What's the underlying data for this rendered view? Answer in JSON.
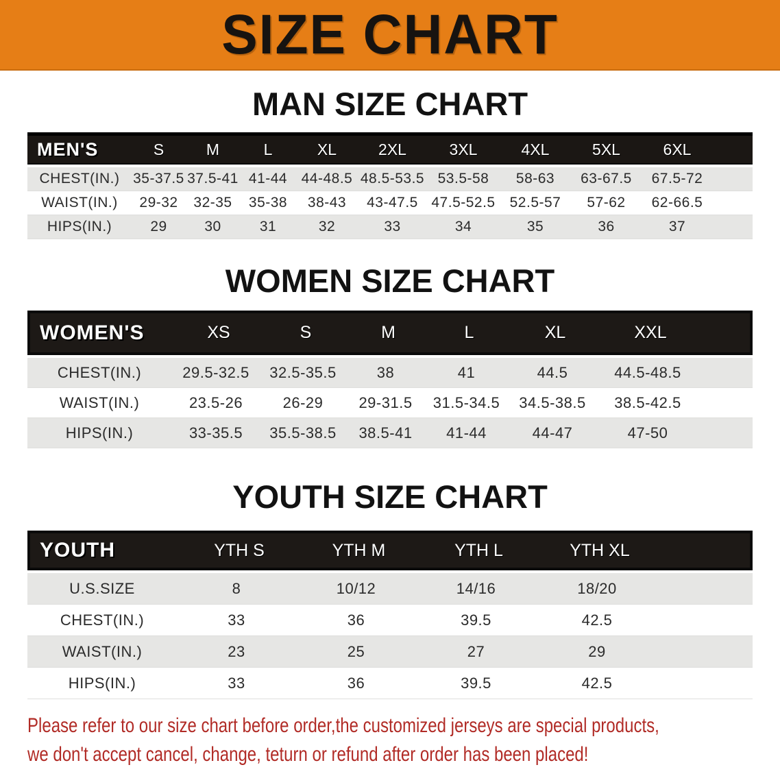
{
  "banner": {
    "title": "SIZE CHART",
    "bg_color": "#e67e16",
    "text_color": "#171310"
  },
  "sections": [
    {
      "id": "men",
      "title": "MAN SIZE CHART",
      "table": {
        "header_label": "MEN'S",
        "columns": [
          "S",
          "M",
          "L",
          "XL",
          "2XL",
          "3XL",
          "4XL",
          "5XL",
          "6XL"
        ],
        "rows": [
          {
            "label": "CHEST(IN.)",
            "values": [
              "35-37.5",
              "37.5-41",
              "41-44",
              "44-48.5",
              "48.5-53.5",
              "53.5-58",
              "58-63",
              "63-67.5",
              "67.5-72"
            ]
          },
          {
            "label": "WAIST(IN.)",
            "values": [
              "29-32",
              "32-35",
              "35-38",
              "38-43",
              "43-47.5",
              "47.5-52.5",
              "52.5-57",
              "57-62",
              "62-66.5"
            ]
          },
          {
            "label": "HIPS(IN.)",
            "values": [
              "29",
              "30",
              "31",
              "32",
              "33",
              "34",
              "35",
              "36",
              "37"
            ]
          }
        ]
      }
    },
    {
      "id": "women",
      "title": "WOMEN SIZE CHART",
      "table": {
        "header_label": "WOMEN'S",
        "columns": [
          "XS",
          "S",
          "M",
          "L",
          "XL",
          "XXL"
        ],
        "rows": [
          {
            "label": "CHEST(IN.)",
            "values": [
              "29.5-32.5",
              "32.5-35.5",
              "38",
              "41",
              "44.5",
              "44.5-48.5"
            ]
          },
          {
            "label": "WAIST(IN.)",
            "values": [
              "23.5-26",
              "26-29",
              "29-31.5",
              "31.5-34.5",
              "34.5-38.5",
              "38.5-42.5"
            ]
          },
          {
            "label": "HIPS(IN.)",
            "values": [
              "33-35.5",
              "35.5-38.5",
              "38.5-41",
              "41-44",
              "44-47",
              "47-50"
            ]
          }
        ]
      }
    },
    {
      "id": "youth",
      "title": "YOUTH SIZE CHART",
      "table": {
        "header_label": "YOUTH",
        "columns": [
          "YTH S",
          "YTH M",
          "YTH L",
          "YTH XL"
        ],
        "rows": [
          {
            "label": "U.S.SIZE",
            "values": [
              "8",
              "10/12",
              "14/16",
              "18/20"
            ]
          },
          {
            "label": "CHEST(IN.)",
            "values": [
              "33",
              "36",
              "39.5",
              "42.5"
            ]
          },
          {
            "label": "WAIST(IN.)",
            "values": [
              "23",
              "25",
              "27",
              "29"
            ]
          },
          {
            "label": "HIPS(IN.)",
            "values": [
              "33",
              "36",
              "39.5",
              "42.5"
            ]
          }
        ]
      }
    }
  ],
  "footer": {
    "lines": [
      "Please refer to our size chart before order,the customized jerseys are special products,",
      "we don't accept cancel, change, teturn or refund after order has been placed!"
    ],
    "color": "#b12b26"
  }
}
